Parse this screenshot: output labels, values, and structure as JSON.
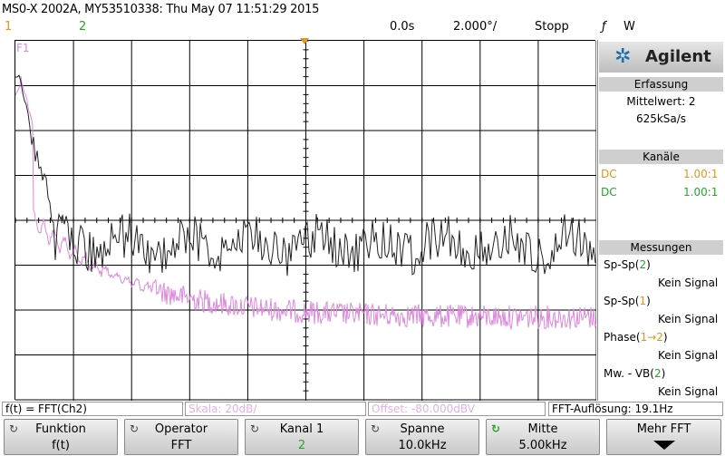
{
  "header": {
    "title": "MS0-X 2002A, MY53510338: Thu May 07 11:51:29 2015",
    "ch1_number": "1",
    "ch2_number": "2",
    "time_position": "0.0s",
    "timebase": "2.000°/",
    "run_state": "Stopp",
    "trigger_symbol": "ƒ",
    "trigger_channel": "W"
  },
  "screen": {
    "math_label": "F1",
    "colors": {
      "trace_ch2": "#222222",
      "trace_fft": "#dd88dd",
      "grid": "#000000"
    }
  },
  "panel": {
    "brand": "Agilent",
    "acquisition": {
      "heading": "Erfassung",
      "mode": "Mittelwert: 2",
      "rate": "625kSa/s"
    },
    "channels": {
      "heading": "Kanäle",
      "items": [
        {
          "coupling": "DC",
          "scale": "1.00:1",
          "color": "#e8941a"
        },
        {
          "coupling": "DC",
          "scale": "1.00:1",
          "color": "#22a822"
        }
      ]
    },
    "measurements": {
      "heading": "Messungen",
      "items": [
        {
          "prefix": "Sp-Sp(",
          "ch": "2",
          "suffix": ")",
          "value": "Kein Signal",
          "ch_color": "#22a822"
        },
        {
          "prefix": "Sp-Sp(",
          "ch": "1",
          "suffix": ")",
          "value": "Kein Signal",
          "ch_color": "#e8941a"
        },
        {
          "prefix": "Phase(",
          "ch": "1→2",
          "suffix": ")",
          "value": "Kein Signal",
          "ch_color": "#e8941a"
        },
        {
          "prefix": "Mw. - VB(",
          "ch": "2",
          "suffix": ")",
          "value": "Kein Signal",
          "ch_color": "#22a822"
        }
      ]
    }
  },
  "status": {
    "function": "f(t) = FFT(Ch2)",
    "scale": "Skala: 20dB/",
    "offset": "Offset: -80.000dBV",
    "resolution": "FFT-Auflösung: 19.1Hz"
  },
  "softkeys": [
    {
      "label": "Funktion",
      "value": "f(t)",
      "value_color": "#000000"
    },
    {
      "label": "Operator",
      "value": "FFT",
      "value_color": "#000000"
    },
    {
      "label": "Kanal 1",
      "value": "2",
      "value_color": "#22a822"
    },
    {
      "label": "Spanne",
      "value": "10.0kHz",
      "value_color": "#000000"
    },
    {
      "label": "Mitte",
      "value": "5.00kHz",
      "value_color": "#000000"
    },
    {
      "label": "Mehr FFT",
      "value": "",
      "value_color": "#000000"
    }
  ]
}
